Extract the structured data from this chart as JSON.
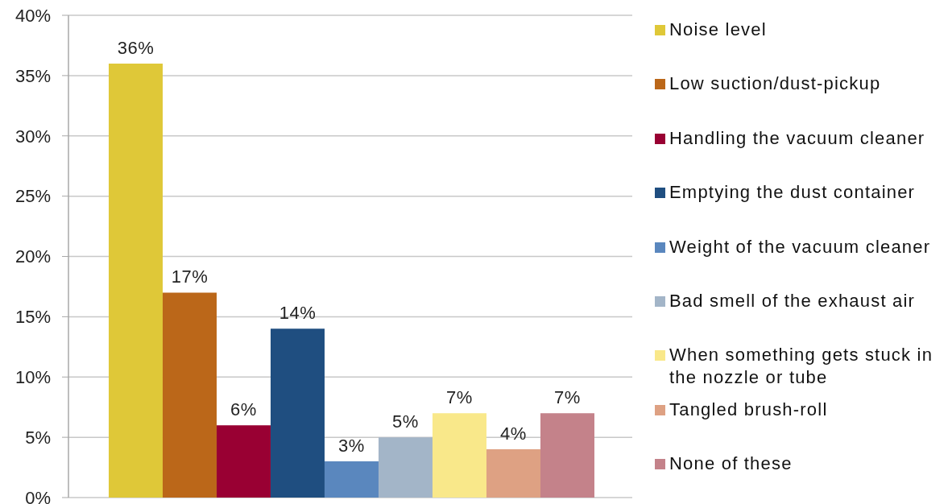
{
  "chart_data": {
    "type": "bar",
    "categories": [
      null
    ],
    "series": [
      {
        "name": "Noise level",
        "color": "#dfc838",
        "values": [
          36
        ],
        "value_labels": [
          "36%"
        ]
      },
      {
        "name": "Low suction/dust-pickup",
        "color": "#bb6719",
        "values": [
          17
        ],
        "value_labels": [
          "17%"
        ]
      },
      {
        "name": "Handling the vacuum cleaner",
        "color": "#990033",
        "values": [
          6
        ],
        "value_labels": [
          "6%"
        ]
      },
      {
        "name": "Emptying the dust container",
        "color": "#1f4e80",
        "values": [
          14
        ],
        "value_labels": [
          "14%"
        ]
      },
      {
        "name": "Weight of the vacuum cleaner",
        "color": "#5a87be",
        "values": [
          3
        ],
        "value_labels": [
          "3%"
        ]
      },
      {
        "name": "Bad smell of the exhaust air",
        "color": "#a3b5c8",
        "values": [
          5
        ],
        "value_labels": [
          "5%"
        ]
      },
      {
        "name": "When something gets stuck in the nozzle or tube",
        "color": "#f9e88a",
        "values": [
          7
        ],
        "value_labels": [
          "7%"
        ]
      },
      {
        "name": "Tangled brush-roll",
        "color": "#dea183",
        "values": [
          4
        ],
        "value_labels": [
          "4%"
        ]
      },
      {
        "name": "None of these",
        "color": "#c4828a",
        "values": [
          7
        ],
        "value_labels": [
          "7%"
        ]
      }
    ],
    "ylim": [
      0,
      40
    ],
    "yticks": [
      {
        "value": 0,
        "label": "0%"
      },
      {
        "value": 5,
        "label": "5%"
      },
      {
        "value": 10,
        "label": "10%"
      },
      {
        "value": 15,
        "label": "15%"
      },
      {
        "value": 20,
        "label": "20%"
      },
      {
        "value": 25,
        "label": "25%"
      },
      {
        "value": 30,
        "label": "30%"
      },
      {
        "value": 35,
        "label": "35%"
      },
      {
        "value": 40,
        "label": "40%"
      }
    ],
    "grid": "y",
    "legend": "right"
  }
}
